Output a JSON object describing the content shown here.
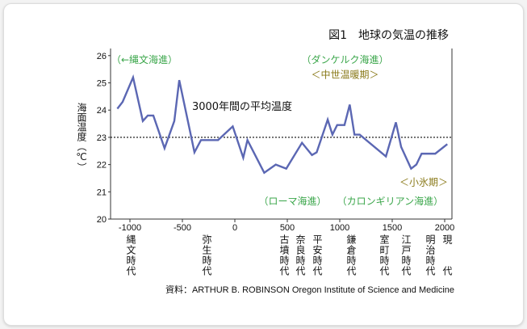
{
  "chart_data": {
    "type": "line",
    "title": "図1　地球の気温の推移",
    "ylabel": "海面温度（℃）",
    "xlabel": "",
    "xlim": [
      -1150,
      2050
    ],
    "ylim": [
      20,
      26
    ],
    "x_ticks": [
      -1000,
      -500,
      0,
      500,
      1000,
      1500,
      2000
    ],
    "y_ticks": [
      20,
      21,
      22,
      23,
      24,
      25,
      26
    ],
    "mean_line": {
      "value": 23,
      "label": "3000年間の平均温度"
    },
    "series": [
      {
        "name": "海面温度",
        "color": "#5b67b3",
        "x": [
          -1120,
          -1070,
          -970,
          -877,
          -830,
          -777,
          -670,
          -577,
          -530,
          -385,
          -323,
          -160,
          -20,
          80,
          120,
          280,
          390,
          490,
          640,
          735,
          780,
          885,
          930,
          975,
          1045,
          1095,
          1140,
          1190,
          1440,
          1535,
          1585,
          1680,
          1730,
          1780,
          1910,
          2025
        ],
        "y": [
          24.05,
          24.3,
          25.2,
          23.6,
          23.8,
          23.8,
          22.6,
          23.6,
          25.1,
          22.45,
          22.9,
          22.9,
          23.4,
          22.25,
          22.9,
          21.7,
          22.0,
          21.85,
          22.8,
          22.35,
          22.45,
          23.65,
          23.1,
          23.45,
          23.45,
          24.2,
          23.1,
          23.1,
          22.3,
          23.55,
          22.65,
          21.85,
          22.0,
          22.4,
          22.4,
          22.75
        ]
      }
    ],
    "annotations": [
      {
        "text": "（←縄文海進）",
        "x": -1100,
        "y": 25.85,
        "style": "green"
      },
      {
        "text": "（ダンケルク海進）",
        "x": 1050,
        "y": 25.85,
        "style": "green"
      },
      {
        "text": "＜中世温暖期＞",
        "x": 1050,
        "y": 25.3,
        "style": "olive"
      },
      {
        "text": "＜小氷期＞",
        "x": 1800,
        "y": 21.35,
        "style": "olive"
      },
      {
        "text": "（ローマ海進）",
        "x": 550,
        "y": 20.65,
        "style": "green"
      },
      {
        "text": "（カロンギリアン海進）",
        "x": 1480,
        "y": 20.65,
        "style": "green"
      }
    ],
    "eras": [
      {
        "label": "縄文時代",
        "x": -990
      },
      {
        "label": "弥生時代",
        "x": -270
      },
      {
        "label": "古墳時代",
        "x": 470
      },
      {
        "label": "奈良時代",
        "x": 625
      },
      {
        "label": "平安時代",
        "x": 785
      },
      {
        "label": "鎌倉時代",
        "x": 1105
      },
      {
        "label": "室町時代",
        "x": 1420
      },
      {
        "label": "江戸時代",
        "x": 1630
      },
      {
        "label": "明治時代",
        "x": 1860
      },
      {
        "label": "現代",
        "x": 2020
      }
    ],
    "source": "資料：ARTHUR B. ROBINSON  Oregon Institute of Science and Medicine"
  }
}
